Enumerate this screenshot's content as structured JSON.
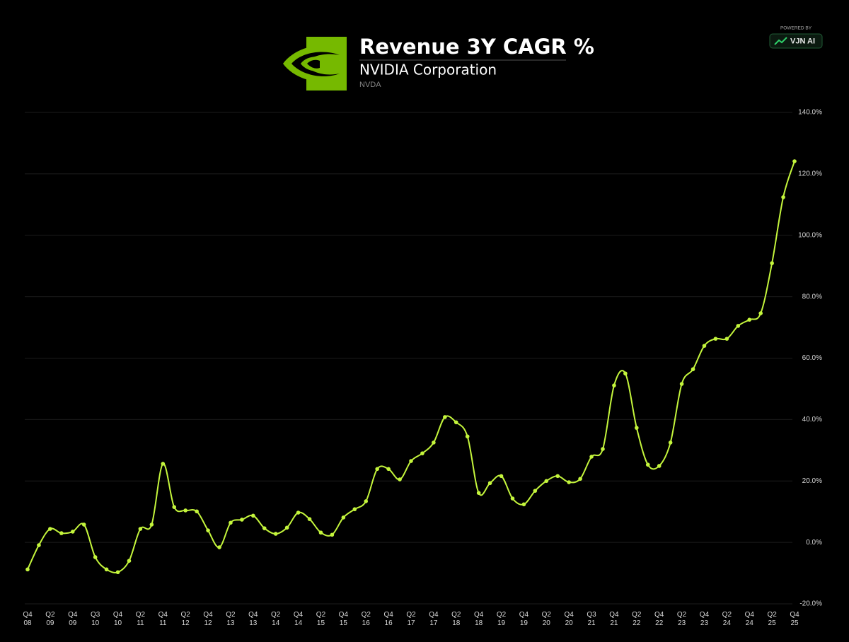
{
  "chart_data": {
    "type": "line",
    "title": "Revenue 3Y CAGR %",
    "subtitle": "NVIDIA Corporation",
    "ticker": "NVDA",
    "powered_by": "POWERED BY",
    "brand": "VJN AI",
    "categories": [
      "Q4\n08",
      null,
      "Q2\n09",
      null,
      "Q4\n09",
      null,
      "Q3\n10",
      null,
      "Q4\n10",
      null,
      "Q2\n11",
      null,
      "Q4\n11",
      null,
      "Q2\n12",
      null,
      "Q4\n12",
      null,
      "Q2\n13",
      null,
      "Q4\n13",
      null,
      "Q2\n14",
      null,
      "Q4\n14",
      null,
      "Q2\n15",
      null,
      "Q4\n15",
      null,
      "Q2\n16",
      null,
      "Q4\n16",
      null,
      "Q2\n17",
      null,
      "Q4\n17",
      null,
      "Q2\n18",
      null,
      "Q4\n18",
      null,
      "Q2\n19",
      null,
      "Q4\n19",
      null,
      "Q2\n20",
      null,
      "Q4\n20",
      null,
      "Q3\n21",
      null,
      "Q4\n21",
      null,
      "Q2\n22",
      null,
      "Q4\n22",
      null,
      "Q2\n23",
      null,
      "Q4\n23",
      null,
      "Q2\n24",
      null,
      "Q4\n24",
      null,
      "Q2\n25",
      null,
      "Q4\n25"
    ],
    "series": [
      {
        "name": "Revenue 3Y CAGR %",
        "color": "#c4f53c",
        "values": [
          -8.8,
          -0.9,
          4.4,
          3.0,
          3.5,
          5.8,
          -4.8,
          -8.8,
          -9.7,
          -6.0,
          4.4,
          5.8,
          25.6,
          11.5,
          10.4,
          10.1,
          3.9,
          -1.6,
          6.4,
          7.4,
          8.7,
          4.6,
          2.8,
          4.8,
          9.7,
          7.6,
          3.2,
          2.5,
          8.1,
          10.8,
          13.4,
          23.9,
          23.9,
          20.5,
          26.5,
          29.0,
          32.5,
          40.8,
          39.1,
          34.5,
          16.1,
          19.3,
          21.6,
          14.3,
          12.4,
          16.8,
          20.0,
          21.6,
          19.6,
          20.7,
          27.9,
          30.4,
          51.1,
          55.0,
          37.3,
          25.3,
          24.9,
          32.5,
          51.6,
          56.4,
          64.0,
          66.3,
          66.3,
          70.5,
          72.5,
          74.6,
          90.9,
          112.4,
          124.1
        ]
      }
    ],
    "ylim": [
      -20,
      140
    ],
    "yticks": [
      {
        "value": -20,
        "label": "-20.0%"
      },
      {
        "value": 0,
        "label": "0.0%"
      },
      {
        "value": 20,
        "label": "20.0%"
      },
      {
        "value": 40,
        "label": "40.0%"
      },
      {
        "value": 60,
        "label": "60.0%"
      },
      {
        "value": 80,
        "label": "80.0%"
      },
      {
        "value": 100,
        "label": "100.0%"
      },
      {
        "value": 120,
        "label": "120.0%"
      },
      {
        "value": 140,
        "label": "140.0%"
      }
    ],
    "grid": true
  }
}
